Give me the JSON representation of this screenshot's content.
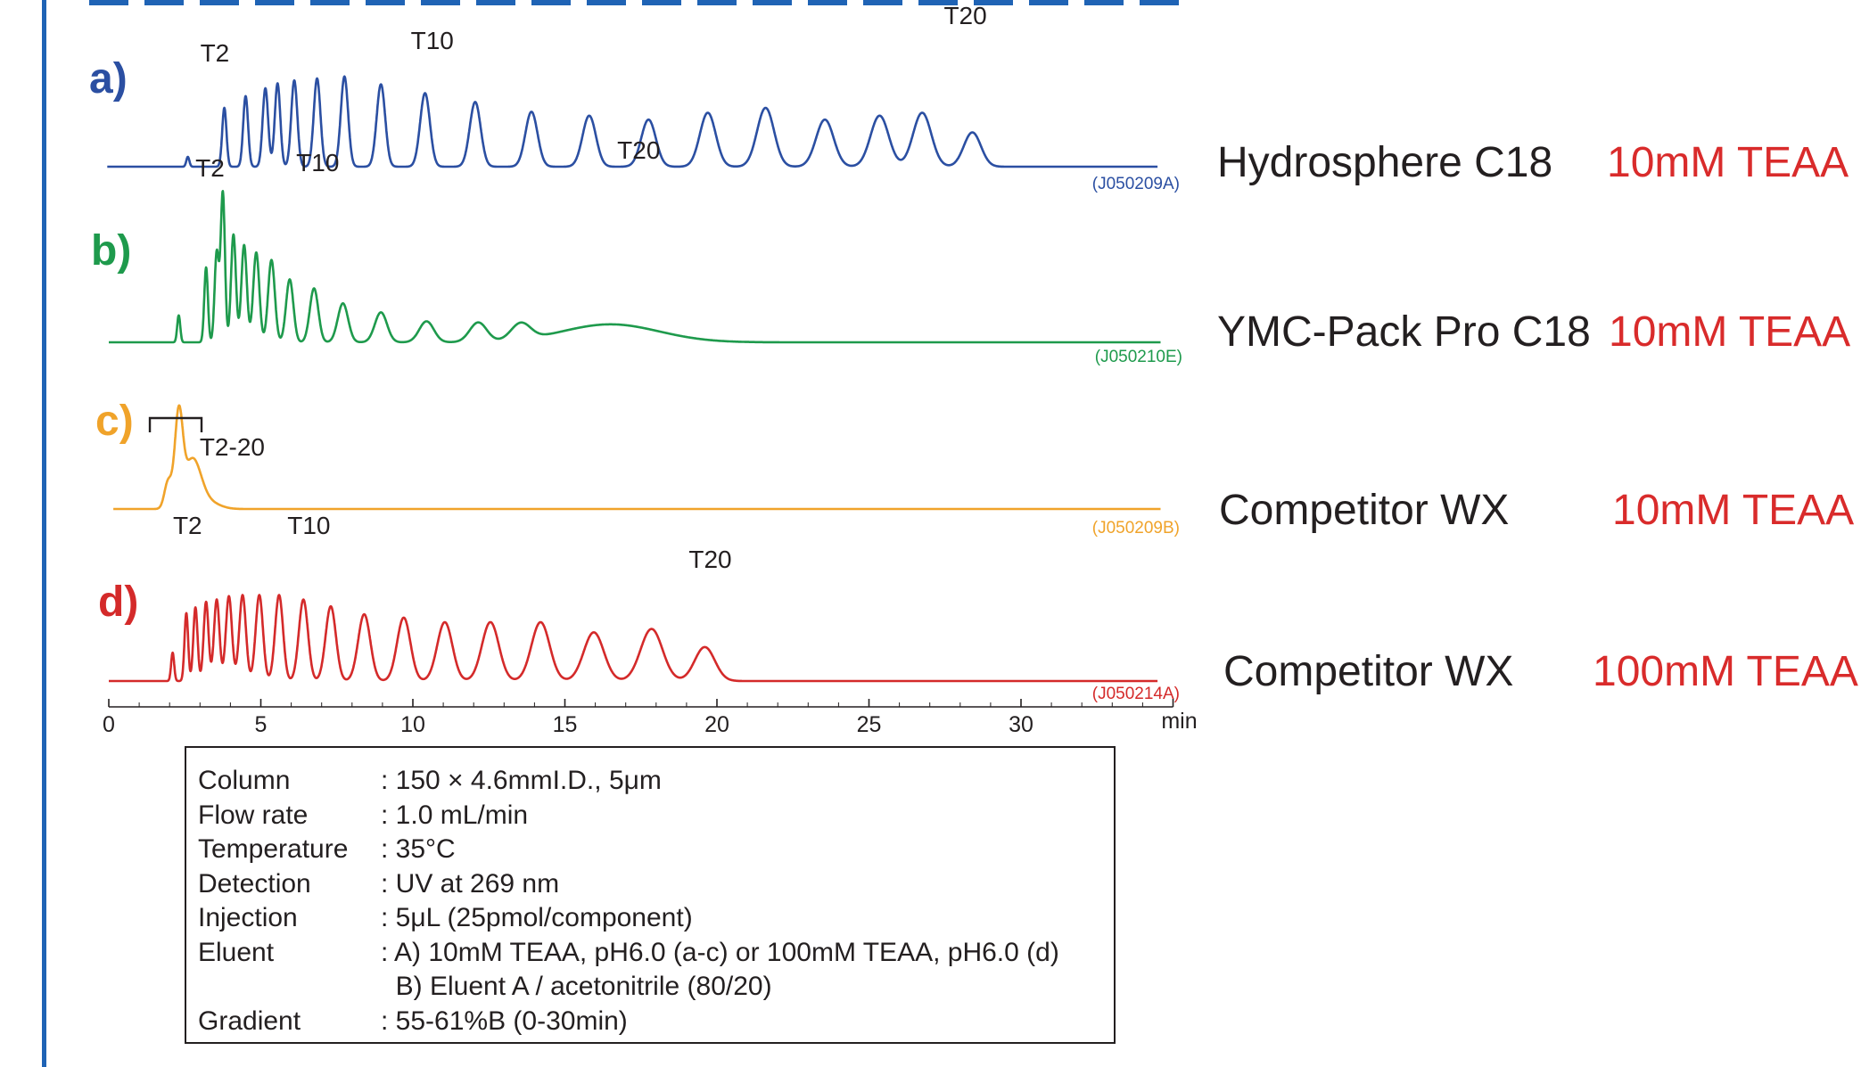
{
  "chart_data": {
    "type": "line",
    "x_unit": "min",
    "xlim": [
      0,
      35
    ],
    "x_ticks": [
      0,
      5,
      10,
      15,
      20,
      25,
      30
    ],
    "grid": false,
    "legend": "none",
    "panels": [
      {
        "letter": "a)",
        "color": "#2b4fa2",
        "column": "Hydrosphere C18",
        "eluent": "10mM TEAA",
        "code": "(J050209A)",
        "baseline_end_min": 34.5,
        "peaks": [
          {
            "t": 2.6,
            "h": 0.1,
            "w": 0.05
          },
          {
            "t": 3.8,
            "h": 0.6,
            "w": 0.07
          },
          {
            "t": 4.5,
            "h": 0.72,
            "w": 0.08
          },
          {
            "t": 5.15,
            "h": 0.8,
            "w": 0.09
          },
          {
            "t": 5.55,
            "h": 0.85,
            "w": 0.09
          },
          {
            "t": 6.1,
            "h": 0.88,
            "w": 0.1
          },
          {
            "t": 6.85,
            "h": 0.9,
            "w": 0.11
          },
          {
            "t": 7.75,
            "h": 0.92,
            "w": 0.12
          },
          {
            "t": 8.95,
            "h": 0.84,
            "w": 0.14
          },
          {
            "t": 10.4,
            "h": 0.75,
            "w": 0.16
          },
          {
            "t": 12.05,
            "h": 0.66,
            "w": 0.18
          },
          {
            "t": 13.9,
            "h": 0.56,
            "w": 0.2
          },
          {
            "t": 15.8,
            "h": 0.52,
            "w": 0.22
          },
          {
            "t": 17.75,
            "h": 0.48,
            "w": 0.24
          },
          {
            "t": 19.7,
            "h": 0.55,
            "w": 0.26
          },
          {
            "t": 21.6,
            "h": 0.6,
            "w": 0.28
          },
          {
            "t": 23.55,
            "h": 0.48,
            "w": 0.29
          },
          {
            "t": 25.35,
            "h": 0.52,
            "w": 0.3
          },
          {
            "t": 26.75,
            "h": 0.55,
            "w": 0.3
          },
          {
            "t": 28.4,
            "h": 0.35,
            "w": 0.28
          }
        ],
        "peak_labels": [
          {
            "text": "T2",
            "t": 3.8
          },
          {
            "text": "T10",
            "t": 10.4
          },
          {
            "text": "T20",
            "t": 28.4
          }
        ]
      },
      {
        "letter": "b)",
        "color": "#1e9a4c",
        "column": "YMC-Pack Pro C18",
        "eluent": "10mM TEAA",
        "code": "(J050210E)",
        "baseline_end_min": 34.6,
        "peaks": [
          {
            "t": 2.3,
            "h": 0.18,
            "w": 0.05
          },
          {
            "t": 3.2,
            "h": 0.5,
            "w": 0.06
          },
          {
            "t": 3.55,
            "h": 0.6,
            "w": 0.07
          },
          {
            "t": 3.75,
            "h": 1.0,
            "w": 0.07
          },
          {
            "t": 4.1,
            "h": 0.72,
            "w": 0.08
          },
          {
            "t": 4.45,
            "h": 0.65,
            "w": 0.09
          },
          {
            "t": 4.85,
            "h": 0.6,
            "w": 0.1
          },
          {
            "t": 5.35,
            "h": 0.55,
            "w": 0.11
          },
          {
            "t": 5.95,
            "h": 0.42,
            "w": 0.12
          },
          {
            "t": 6.75,
            "h": 0.36,
            "w": 0.14
          },
          {
            "t": 7.7,
            "h": 0.26,
            "w": 0.17
          },
          {
            "t": 8.95,
            "h": 0.2,
            "w": 0.2
          },
          {
            "t": 10.45,
            "h": 0.14,
            "w": 0.24
          },
          {
            "t": 12.15,
            "h": 0.13,
            "w": 0.28
          },
          {
            "t": 13.55,
            "h": 0.11,
            "w": 0.32
          },
          {
            "t": 16.5,
            "h": 0.12,
            "w": 1.6
          }
        ],
        "peak_labels": [
          {
            "text": "T2",
            "t": 3.2
          },
          {
            "text": "T10",
            "t": 6.75
          },
          {
            "text": "T20",
            "t": 17.6
          }
        ]
      },
      {
        "letter": "c)",
        "color": "#f0a32a",
        "column": "Competitor WX",
        "eluent": "10mM TEAA",
        "code": "(J050209B)",
        "baseline_end_min": 34.6,
        "peaks": [
          {
            "t": 1.95,
            "h": 0.3,
            "w": 0.12
          },
          {
            "t": 2.3,
            "h": 1.0,
            "w": 0.13
          },
          {
            "t": 2.75,
            "h": 0.55,
            "w": 0.28
          },
          {
            "t": 3.3,
            "h": 0.07,
            "w": 0.35
          }
        ],
        "peak_labels": [
          {
            "text": "T2-20",
            "t": 3.25
          }
        ]
      },
      {
        "letter": "d)",
        "color": "#d42a2a",
        "column": "Competitor WX",
        "eluent": "100mM TEAA",
        "code": "(J050214A)",
        "baseline_end_min": 34.5,
        "peaks": [
          {
            "t": 2.1,
            "h": 0.25,
            "w": 0.05
          },
          {
            "t": 2.55,
            "h": 0.6,
            "w": 0.06
          },
          {
            "t": 2.85,
            "h": 0.65,
            "w": 0.07
          },
          {
            "t": 3.2,
            "h": 0.7,
            "w": 0.08
          },
          {
            "t": 3.55,
            "h": 0.72,
            "w": 0.09
          },
          {
            "t": 3.95,
            "h": 0.75,
            "w": 0.1
          },
          {
            "t": 4.4,
            "h": 0.76,
            "w": 0.11
          },
          {
            "t": 4.95,
            "h": 0.76,
            "w": 0.12
          },
          {
            "t": 5.6,
            "h": 0.76,
            "w": 0.13
          },
          {
            "t": 6.4,
            "h": 0.72,
            "w": 0.15
          },
          {
            "t": 7.3,
            "h": 0.66,
            "w": 0.17
          },
          {
            "t": 8.4,
            "h": 0.59,
            "w": 0.2
          },
          {
            "t": 9.7,
            "h": 0.56,
            "w": 0.22
          },
          {
            "t": 11.05,
            "h": 0.52,
            "w": 0.25
          },
          {
            "t": 12.55,
            "h": 0.52,
            "w": 0.28
          },
          {
            "t": 14.2,
            "h": 0.52,
            "w": 0.3
          },
          {
            "t": 15.95,
            "h": 0.43,
            "w": 0.33
          },
          {
            "t": 17.85,
            "h": 0.46,
            "w": 0.36
          },
          {
            "t": 19.6,
            "h": 0.3,
            "w": 0.33
          }
        ],
        "peak_labels": [
          {
            "text": "T2",
            "t": 2.55
          },
          {
            "text": "T10",
            "t": 6.4
          },
          {
            "text": "T20",
            "t": 19.6
          }
        ]
      }
    ]
  },
  "conditions": [
    {
      "label": "Column",
      "value": ": 150 × 4.6mmI.D., 5μm"
    },
    {
      "label": "Flow rate",
      "value": ": 1.0 mL/min"
    },
    {
      "label": "Temperature",
      "value": ": 35°C"
    },
    {
      "label": "Detection",
      "value": ": UV at 269 nm"
    },
    {
      "label": "Injection",
      "value": ": 5μL (25pmol/component)"
    },
    {
      "label": "Eluent",
      "value": ": A) 10mM TEAA, pH6.0 (a-c) or 100mM TEAA, pH6.0 (d)"
    },
    {
      "label": "",
      "value": "  B) Eluent A / acetonitrile (80/20)"
    },
    {
      "label": "Gradient",
      "value": ": 55-61%B (0-30min)"
    }
  ],
  "colors": {
    "frame_blue": "#1f63b5",
    "eluent_red": "#d92b2b",
    "text": "#231f20"
  }
}
